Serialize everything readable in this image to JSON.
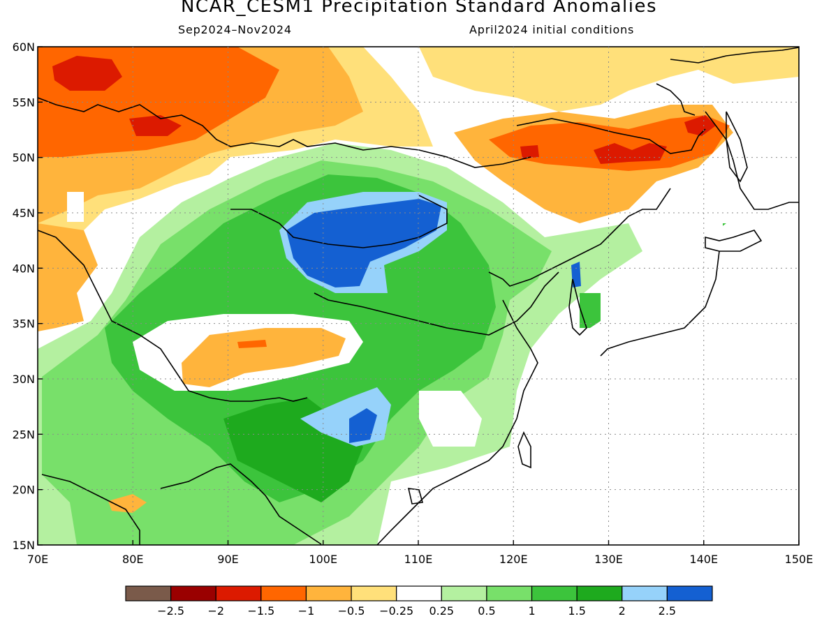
{
  "title": "NCAR_CESM1 Precipitation Standard Anomalies",
  "subtitle_left": "Sep2024–Nov2024",
  "subtitle_right": "April2024 initial conditions",
  "map": {
    "lon_range": [
      70,
      150
    ],
    "lat_range": [
      15,
      60
    ],
    "lon_ticks": [
      "70E",
      "80E",
      "90E",
      "100E",
      "110E",
      "120E",
      "130E",
      "140E",
      "150E"
    ],
    "lat_ticks": [
      "60N",
      "55N",
      "50N",
      "45N",
      "40N",
      "35N",
      "30N",
      "25N",
      "20N",
      "15N"
    ]
  },
  "colorbar": {
    "colors": [
      "#7a5a4a",
      "#9a0000",
      "#dc1a00",
      "#ff6600",
      "#ffb43c",
      "#ffe07a",
      "#ffffff",
      "#b4f0a0",
      "#78e06a",
      "#3cc43c",
      "#1eaa1e",
      "#96d2fa",
      "#1460d2"
    ],
    "labels": [
      "−2.5",
      "−2",
      "−1.5",
      "−1",
      "−0.5",
      "−0.25",
      "0.25",
      "0.5",
      "1",
      "1.5",
      "2",
      "2.5"
    ]
  }
}
